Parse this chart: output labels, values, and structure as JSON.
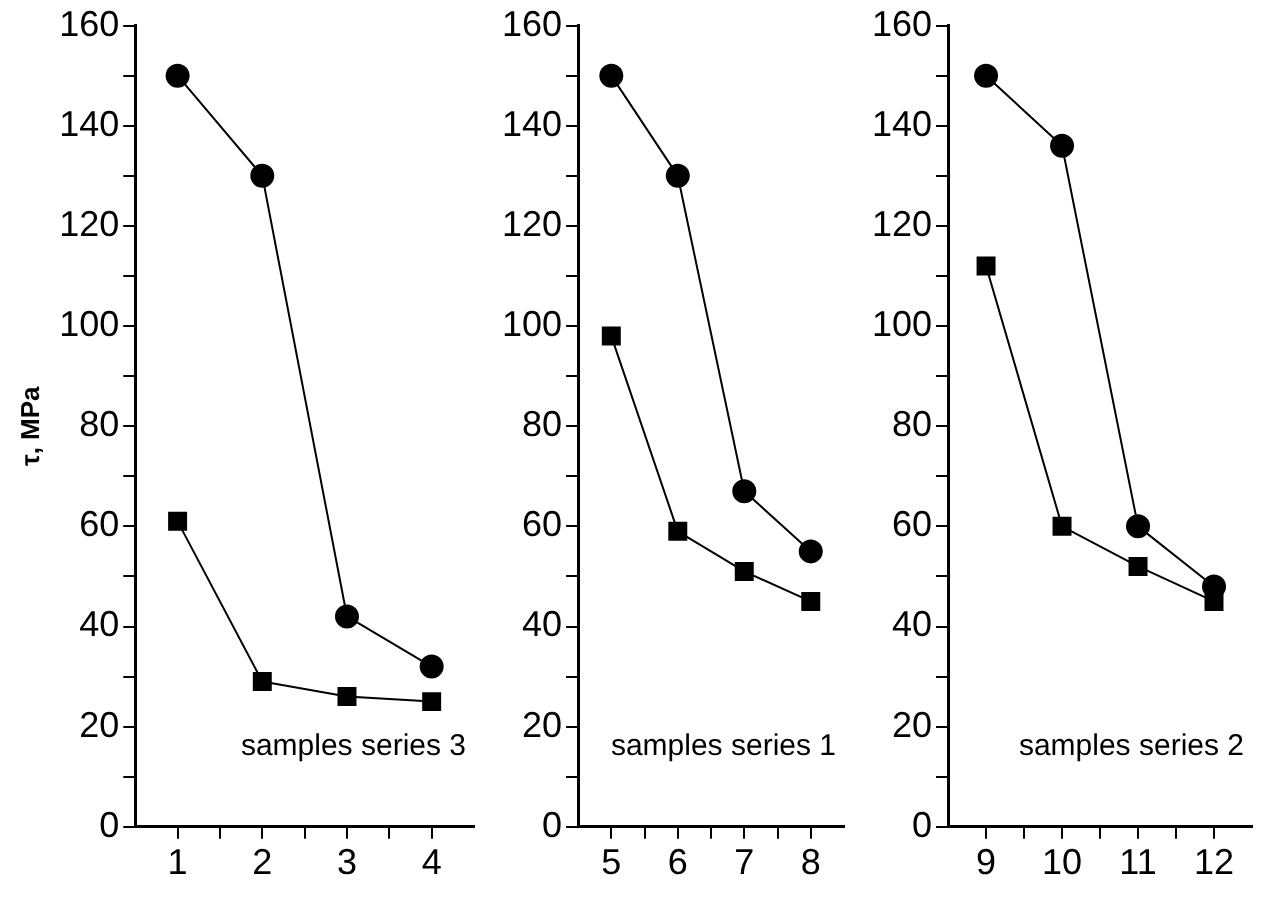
{
  "chart_data": [
    {
      "type": "line",
      "ylabel": "τ, MPa",
      "annotations": [
        "samples series 3"
      ],
      "x": [
        1,
        2,
        3,
        4
      ],
      "xlim": [
        0.5,
        4.5
      ],
      "xticks": [
        1,
        {
          "value": 1.5,
          "label": null
        },
        2,
        {
          "value": 2.5,
          "label": null
        },
        3,
        {
          "value": 3.5,
          "label": null
        },
        4
      ],
      "ylim": [
        0,
        160
      ],
      "yticks": [
        0,
        {
          "value": 10,
          "label": null
        },
        20,
        {
          "value": 30,
          "label": null
        },
        40,
        {
          "value": 50,
          "label": null
        },
        60,
        {
          "value": 70,
          "label": null
        },
        80,
        {
          "value": 90,
          "label": null
        },
        100,
        {
          "value": 110,
          "label": null
        },
        120,
        {
          "value": 130,
          "label": null
        },
        140,
        {
          "value": 150,
          "label": null
        },
        160
      ],
      "grid": false,
      "legend": false,
      "line_style": "solid",
      "series": [
        {
          "color": "#000000",
          "marker": "circle",
          "values": [
            150,
            130,
            42,
            32
          ]
        },
        {
          "color": "#000000",
          "marker": "square",
          "values": [
            61,
            29,
            26,
            25
          ]
        }
      ]
    },
    {
      "type": "line",
      "annotations": [
        "samples series 1"
      ],
      "x": [
        5,
        6,
        7,
        8
      ],
      "xlim": [
        4.5,
        8.5
      ],
      "xticks": [
        5,
        {
          "value": 5.5,
          "label": null
        },
        6,
        {
          "value": 6.5,
          "label": null
        },
        7,
        {
          "value": 7.5,
          "label": null
        },
        8
      ],
      "ylim": [
        0,
        160
      ],
      "yticks": [
        0,
        {
          "value": 10,
          "label": null
        },
        20,
        {
          "value": 30,
          "label": null
        },
        40,
        {
          "value": 50,
          "label": null
        },
        60,
        {
          "value": 70,
          "label": null
        },
        80,
        {
          "value": 90,
          "label": null
        },
        100,
        {
          "value": 110,
          "label": null
        },
        120,
        {
          "value": 130,
          "label": null
        },
        140,
        {
          "value": 150,
          "label": null
        },
        160
      ],
      "grid": false,
      "legend": false,
      "line_style": "solid",
      "series": [
        {
          "color": "#000000",
          "marker": "circle",
          "values": [
            150,
            130,
            67,
            55
          ]
        },
        {
          "color": "#000000",
          "marker": "square",
          "values": [
            98,
            59,
            51,
            45
          ]
        }
      ]
    },
    {
      "type": "line",
      "annotations": [
        "samples series 2"
      ],
      "x": [
        9,
        10,
        11,
        12
      ],
      "xlim": [
        8.5,
        12.5
      ],
      "xticks": [
        9,
        {
          "value": 9.5,
          "label": null
        },
        10,
        {
          "value": 10.5,
          "label": null
        },
        11,
        {
          "value": 11.5,
          "label": null
        },
        12
      ],
      "ylim": [
        0,
        160
      ],
      "yticks": [
        0,
        {
          "value": 10,
          "label": null
        },
        20,
        {
          "value": 30,
          "label": null
        },
        40,
        {
          "value": 50,
          "label": null
        },
        60,
        {
          "value": 70,
          "label": null
        },
        80,
        {
          "value": 90,
          "label": null
        },
        100,
        {
          "value": 110,
          "label": null
        },
        120,
        {
          "value": 130,
          "label": null
        },
        140,
        {
          "value": 150,
          "label": null
        },
        160
      ],
      "grid": false,
      "legend": false,
      "line_style": "solid",
      "series": [
        {
          "color": "#000000",
          "marker": "circle",
          "values": [
            150,
            136,
            60,
            48
          ]
        },
        {
          "color": "#000000",
          "marker": "square",
          "values": [
            112,
            60,
            52,
            45
          ]
        }
      ]
    }
  ]
}
